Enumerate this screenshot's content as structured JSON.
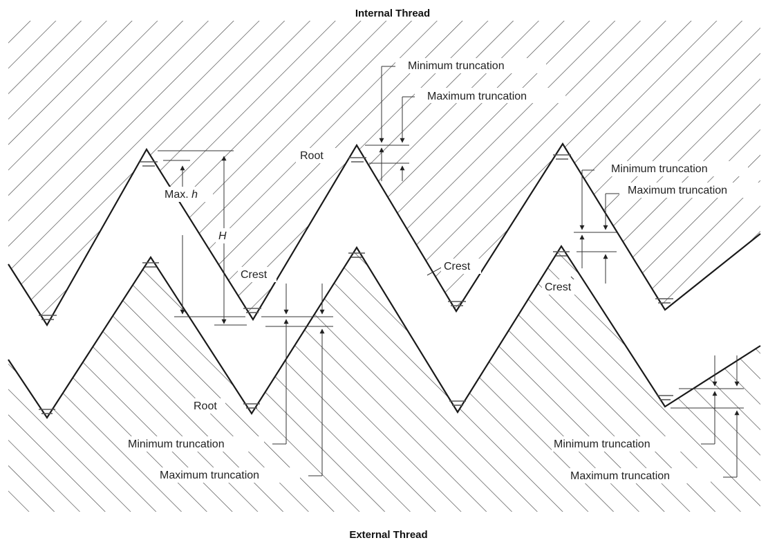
{
  "title_top": "Internal Thread",
  "title_bottom": "External Thread",
  "labels": {
    "root": "Root",
    "crest": "Crest",
    "minimum_truncation": "Minimum truncation",
    "maximum_truncation": "Maximum truncation",
    "max_h_prefix": "Max. ",
    "max_h_symbol": "h",
    "H": "H"
  },
  "colors": {
    "ink": "#1a1a1a",
    "hatch": "#444444",
    "background": "#ffffff"
  }
}
